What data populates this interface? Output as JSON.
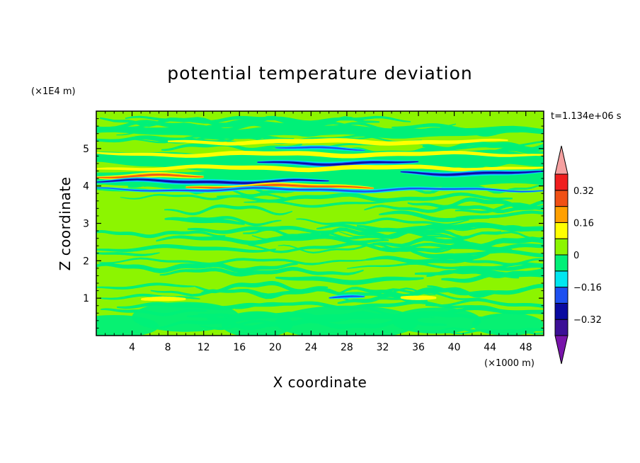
{
  "chart_data": {
    "type": "heatmap",
    "title": "potential temperature deviation",
    "xlabel": "X coordinate",
    "ylabel": "Z coordinate",
    "x_unit": "(×1000 m)",
    "y_unit": "(×1E4 m)",
    "time_label": "t=1.134e+06 s",
    "xlim": [
      0,
      50
    ],
    "ylim": [
      0,
      6
    ],
    "x_ticks": [
      4,
      8,
      12,
      16,
      20,
      24,
      28,
      32,
      36,
      40,
      44,
      48
    ],
    "y_ticks": [
      1,
      2,
      3,
      4,
      5
    ],
    "colorbar": {
      "levels": [
        -0.4,
        -0.32,
        -0.24,
        -0.16,
        -0.08,
        0,
        0.08,
        0.16,
        0.24,
        0.32,
        0.4
      ],
      "tick_values": [
        -0.32,
        -0.16,
        0,
        0.16,
        0.32
      ],
      "tick_labels": [
        "−0.32",
        "−0.16",
        "0",
        "0.16",
        "0.32"
      ],
      "colors": [
        "#3c0f96",
        "#0a0aa0",
        "#1e50f0",
        "#00e6f0",
        "#00f078",
        "#8cf500",
        "#ffff00",
        "#ffa000",
        "#f05014",
        "#f01e1e"
      ],
      "under_color": "#7814aa",
      "over_color": "#f5a0a0"
    },
    "bands": [
      {
        "z": 5.18,
        "kind": "pos",
        "x0": 8,
        "x1": 46
      },
      {
        "z": 5.0,
        "kind": "neg",
        "x0": 20,
        "x1": 30
      },
      {
        "z": 4.85,
        "kind": "pos",
        "x0": 0,
        "x1": 50
      },
      {
        "z": 4.62,
        "kind": "negstrong",
        "x0": 18,
        "x1": 36
      },
      {
        "z": 4.48,
        "kind": "pos",
        "x0": 0,
        "x1": 50
      },
      {
        "z": 4.35,
        "kind": "negstrong",
        "x0": 34,
        "x1": 50
      },
      {
        "z": 4.25,
        "kind": "posstrong",
        "x0": 0,
        "x1": 12
      },
      {
        "z": 4.12,
        "kind": "negstrong",
        "x0": 0,
        "x1": 26
      },
      {
        "z": 3.98,
        "kind": "posstrong",
        "x0": 10,
        "x1": 31
      },
      {
        "z": 3.9,
        "kind": "neg",
        "x0": 0,
        "x1": 50
      },
      {
        "z": 1.0,
        "kind": "pos",
        "x0": 5,
        "x1": 10
      },
      {
        "z": 1.0,
        "kind": "pos",
        "x0": 34,
        "x1": 38
      },
      {
        "z": 1.0,
        "kind": "neg",
        "x0": 26,
        "x1": 30
      }
    ]
  }
}
